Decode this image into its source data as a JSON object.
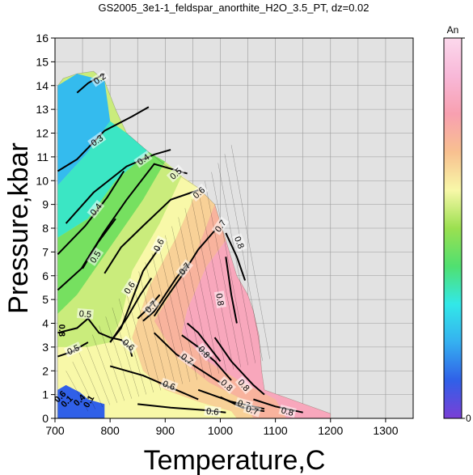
{
  "chart_data": {
    "type": "heatmap",
    "title": "GS2005_3e1-1_feldspar_anorthite_H2O_3.5_PT, dz=0.02",
    "xlabel": "Temperature,C",
    "ylabel": "Pressure,kbar",
    "xlim": [
      700,
      1350
    ],
    "ylim": [
      0,
      16
    ],
    "xticks": [
      "700",
      "800",
      "900",
      "1000",
      "1100",
      "1200",
      "1300"
    ],
    "yticks": [
      "0",
      "1",
      "2",
      "3",
      "4",
      "5",
      "6",
      "7",
      "8",
      "9",
      "10",
      "11",
      "12",
      "13",
      "14",
      "15",
      "16"
    ],
    "grid": true,
    "background_color": "#e2e2e2",
    "colorbar": {
      "label": "An",
      "min_label": "0",
      "min": 0,
      "max": 1,
      "stops": [
        "#7a3fd6",
        "#3060e8",
        "#35b0f0",
        "#32e8e8",
        "#50e070",
        "#9be050",
        "#f8f8a8",
        "#f8c090",
        "#f8a0b0",
        "#f8b8d8",
        "#fcd8ec"
      ]
    },
    "field_boundary": [
      [
        705,
        0
      ],
      [
        705,
        14
      ],
      [
        715,
        14.3
      ],
      [
        740,
        14.5
      ],
      [
        770,
        14.6
      ],
      [
        790,
        14.2
      ],
      [
        810,
        13
      ],
      [
        830,
        12
      ],
      [
        870,
        11.2
      ],
      [
        920,
        10.3
      ],
      [
        960,
        9.7
      ],
      [
        990,
        9
      ],
      [
        1010,
        7.5
      ],
      [
        1030,
        6
      ],
      [
        1050,
        5.2
      ],
      [
        1060,
        4.5
      ],
      [
        1070,
        3.5
      ],
      [
        1075,
        2
      ],
      [
        1080,
        1.2
      ],
      [
        1140,
        0.7
      ],
      [
        1200,
        0.2
      ],
      [
        1200,
        0
      ]
    ],
    "color_fields": [
      {
        "value": 0.22,
        "polygon": [
          [
            705,
            14
          ],
          [
            740,
            14.5
          ],
          [
            790,
            14.2
          ],
          [
            800,
            12.5
          ],
          [
            760,
            11.2
          ],
          [
            705,
            9.8
          ]
        ]
      },
      {
        "value": 0.33,
        "polygon": [
          [
            705,
            9.8
          ],
          [
            760,
            11.2
          ],
          [
            800,
            12.5
          ],
          [
            830,
            12
          ],
          [
            870,
            11.2
          ],
          [
            810,
            10
          ],
          [
            760,
            8.4
          ],
          [
            705,
            7.6
          ]
        ]
      },
      {
        "value": 0.45,
        "polygon": [
          [
            705,
            7.6
          ],
          [
            760,
            8.4
          ],
          [
            810,
            10
          ],
          [
            870,
            11.2
          ],
          [
            900,
            10.8
          ],
          [
            860,
            9.2
          ],
          [
            800,
            7.2
          ],
          [
            740,
            5.2
          ],
          [
            705,
            4.4
          ]
        ]
      },
      {
        "value": 0.55,
        "polygon": [
          [
            705,
            4.4
          ],
          [
            740,
            5.2
          ],
          [
            800,
            7.2
          ],
          [
            860,
            9.2
          ],
          [
            900,
            10.8
          ],
          [
            930,
            10.2
          ],
          [
            890,
            8.2
          ],
          [
            840,
            6.2
          ],
          [
            820,
            4.2
          ],
          [
            800,
            3.2
          ],
          [
            760,
            3
          ],
          [
            705,
            3
          ]
        ]
      },
      {
        "value": 0.6,
        "polygon": [
          [
            705,
            3
          ],
          [
            760,
            3
          ],
          [
            800,
            3.2
          ],
          [
            820,
            4.2
          ],
          [
            840,
            6.2
          ],
          [
            890,
            8.2
          ],
          [
            930,
            10.2
          ],
          [
            960,
            9.7
          ],
          [
            920,
            7.6
          ],
          [
            870,
            5.5
          ],
          [
            840,
            3.4
          ],
          [
            860,
            2
          ],
          [
            900,
            1.2
          ],
          [
            960,
            0.7
          ],
          [
            1020,
            0.3
          ],
          [
            1030,
            0
          ],
          [
            705,
            0
          ]
        ]
      },
      {
        "value": 0.67,
        "polygon": [
          [
            870,
            5.5
          ],
          [
            920,
            7.6
          ],
          [
            960,
            9.7
          ],
          [
            990,
            9
          ],
          [
            960,
            7.2
          ],
          [
            920,
            5.6
          ],
          [
            880,
            4.1
          ],
          [
            920,
            2.6
          ],
          [
            980,
            1.5
          ],
          [
            1040,
            0.8
          ],
          [
            1060,
            0
          ],
          [
            1030,
            0
          ],
          [
            1020,
            0.3
          ],
          [
            960,
            0.7
          ],
          [
            900,
            1.2
          ],
          [
            860,
            2
          ],
          [
            840,
            3.4
          ]
        ]
      },
      {
        "value": 0.74,
        "polygon": [
          [
            880,
            4.1
          ],
          [
            920,
            5.6
          ],
          [
            960,
            7.2
          ],
          [
            990,
            9
          ],
          [
            1010,
            7.5
          ],
          [
            975,
            6.4
          ],
          [
            940,
            4.6
          ],
          [
            930,
            3.6
          ],
          [
            970,
            2.5
          ],
          [
            1040,
            1.5
          ],
          [
            1100,
            0.8
          ],
          [
            1120,
            0
          ],
          [
            1060,
            0
          ],
          [
            1040,
            0.8
          ],
          [
            980,
            1.5
          ],
          [
            920,
            2.6
          ]
        ]
      },
      {
        "value": 0.83,
        "polygon": [
          [
            940,
            4.6
          ],
          [
            975,
            6.4
          ],
          [
            1010,
            7.5
          ],
          [
            1030,
            6
          ],
          [
            1050,
            5.2
          ],
          [
            1060,
            4.5
          ],
          [
            1070,
            3.5
          ],
          [
            1075,
            2
          ],
          [
            1080,
            1.2
          ],
          [
            1140,
            0.7
          ],
          [
            1200,
            0.2
          ],
          [
            1200,
            0
          ],
          [
            1120,
            0
          ],
          [
            1100,
            0.8
          ],
          [
            1040,
            1.5
          ],
          [
            970,
            2.5
          ],
          [
            930,
            3.6
          ]
        ]
      },
      {
        "value": 0.1,
        "polygon": [
          [
            705,
            0
          ],
          [
            705,
            1.2
          ],
          [
            720,
            1.4
          ],
          [
            745,
            1.1
          ],
          [
            760,
            0.8
          ],
          [
            790,
            0.6
          ],
          [
            790,
            0
          ],
          [
            705,
            0
          ]
        ]
      }
    ],
    "contours": [
      {
        "label": "0.2",
        "points": [
          [
            740,
            13.7
          ],
          [
            760,
            14.1
          ],
          [
            790,
            14.5
          ]
        ],
        "label_at": [
          781,
          14.3
        ]
      },
      {
        "label": "0.3",
        "points": [
          [
            705,
            10.4
          ],
          [
            740,
            10.9
          ],
          [
            790,
            12.1
          ],
          [
            840,
            12.7
          ],
          [
            870,
            13.1
          ]
        ],
        "label_at": [
          776,
          11.7
        ]
      },
      {
        "label": "0.4",
        "points": [
          [
            720,
            8.2
          ],
          [
            770,
            9.5
          ],
          [
            830,
            10.6
          ],
          [
            880,
            11.1
          ],
          [
            910,
            11.3
          ]
        ],
        "label_at": [
          860,
          10.9
        ]
      },
      {
        "label": "0.4",
        "points": [
          [
            705,
            6.9
          ],
          [
            755,
            8.1
          ],
          [
            795,
            9.3
          ],
          [
            825,
            10.4
          ]
        ],
        "label_at": [
          774,
          8.8
        ]
      },
      {
        "label": "0.5",
        "points": [
          [
            705,
            5.4
          ],
          [
            748,
            6.3
          ],
          [
            788,
            7.8
          ],
          [
            830,
            9.2
          ],
          [
            880,
            10.7
          ],
          [
            940,
            10.3
          ]
        ],
        "label_at": [
          919,
          10.3
        ]
      },
      {
        "label": "0.5",
        "points": [
          [
            750,
            6.3
          ],
          [
            778,
            7.4
          ],
          [
            810,
            8.4
          ]
        ],
        "label_at": [
          773,
          6.8
        ]
      },
      {
        "label": "0.6",
        "points": [
          [
            790,
            6.1
          ],
          [
            820,
            7.2
          ],
          [
            860,
            8.1
          ],
          [
            910,
            9.2
          ],
          [
            960,
            9.6
          ]
        ],
        "label_at": [
          961,
          9.5
        ]
      },
      {
        "label": "0.5",
        "points": [
          [
            705,
            3.6
          ],
          [
            740,
            3.8
          ],
          [
            760,
            4.2
          ],
          [
            780,
            3.6
          ],
          [
            800,
            3.4
          ]
        ],
        "label_at": [
          755,
          4.4
        ]
      },
      {
        "label": "0.5",
        "points": [
          [
            705,
            2.6
          ],
          [
            730,
            2.8
          ],
          [
            760,
            3.2
          ]
        ],
        "label_at": [
          733,
          2.9
        ]
      },
      {
        "label": "0.6",
        "points": [
          [
            800,
            3.2
          ],
          [
            820,
            3.8
          ],
          [
            840,
            5
          ],
          [
            860,
            6.2
          ],
          [
            890,
            7.2
          ]
        ],
        "label_at": [
          888,
          7.3
        ]
      },
      {
        "label": "0.6",
        "points": [
          [
            800,
            3.2
          ],
          [
            830,
            4.2
          ],
          [
            855,
            5.2
          ],
          [
            875,
            5.9
          ]
        ],
        "label_at": [
          835,
          5.5
        ]
      },
      {
        "label": "0.7",
        "points": [
          [
            880,
            4.3
          ],
          [
            900,
            5
          ],
          [
            930,
            6
          ],
          [
            960,
            7.1
          ],
          [
            990,
            7.9
          ]
        ],
        "label_at": [
          1000,
          8.1
        ]
      },
      {
        "label": "0.7",
        "points": [
          [
            860,
            4.1
          ],
          [
            880,
            4.5
          ],
          [
            900,
            5.2
          ],
          [
            920,
            5.9
          ],
          [
            940,
            6.5
          ]
        ],
        "label_at": [
          935,
          6.3
        ]
      },
      {
        "label": "0.7",
        "points": [
          [
            850,
            4.2
          ],
          [
            868,
            4.6
          ],
          [
            890,
            5.2
          ]
        ],
        "label_at": [
          874,
          4.7
        ]
      },
      {
        "label": "0.6",
        "points": [
          [
            800,
            3.4
          ],
          [
            820,
            3.3
          ],
          [
            835,
            3
          ],
          [
            840,
            2.6
          ]
        ],
        "label_at": [
          834,
          3.1
        ]
      },
      {
        "label": "0.6",
        "points": [
          [
            800,
            2.2
          ],
          [
            860,
            1.8
          ],
          [
            920,
            1.2
          ],
          [
            960,
            0.8
          ]
        ],
        "label_at": [
          907,
          1.4
        ]
      },
      {
        "label": "0.6",
        "points": [
          [
            850,
            0.6
          ],
          [
            910,
            0.45
          ],
          [
            970,
            0.35
          ],
          [
            1010,
            0.25
          ]
        ],
        "label_at": [
          986,
          0.3
        ]
      },
      {
        "label": "0.7",
        "points": [
          [
            880,
            3.6
          ],
          [
            920,
            2.7
          ],
          [
            960,
            2.1
          ],
          [
            1000,
            1.5
          ]
        ],
        "label_at": [
          940,
          2.5
        ]
      },
      {
        "label": "0.7",
        "points": [
          [
            960,
            1.2
          ],
          [
            1020,
            0.7
          ],
          [
            1080,
            0.4
          ]
        ],
        "label_at": [
          1043,
          0.6
        ]
      },
      {
        "label": "0.7",
        "points": [
          [
            1000,
            0.9
          ],
          [
            1040,
            0.45
          ],
          [
            1080,
            0.3
          ]
        ],
        "label_at": [
          1058,
          0.35
        ]
      },
      {
        "label": "0.8",
        "points": [
          [
            930,
            3.5
          ],
          [
            960,
            3
          ],
          [
            990,
            2.4
          ],
          [
            1020,
            1.6
          ]
        ],
        "label_at": [
          1012,
          1.4
        ]
      },
      {
        "label": "0.8",
        "points": [
          [
            940,
            4
          ],
          [
            960,
            3.6
          ],
          [
            980,
            3
          ],
          [
            1000,
            2.4
          ]
        ],
        "label_at": [
          971,
          2.8
        ]
      },
      {
        "label": "0.8",
        "points": [
          [
            990,
            3.4
          ],
          [
            1020,
            2.4
          ],
          [
            1060,
            1.4
          ],
          [
            1080,
            1
          ]
        ],
        "label_at": [
          1043,
          1.4
        ]
      },
      {
        "label": "0.8",
        "points": [
          [
            1060,
            0.8
          ],
          [
            1100,
            0.5
          ],
          [
            1150,
            0.25
          ]
        ],
        "label_at": [
          1122,
          0.3
        ]
      },
      {
        "label": "0.8",
        "points": [
          [
            1010,
            6.8
          ],
          [
            1020,
            5.2
          ],
          [
            1030,
            4
          ]
        ],
        "label_at": [
          1000,
          5
        ]
      },
      {
        "label": "0.8",
        "points": [
          [
            1010,
            7.8
          ],
          [
            1030,
            6.8
          ],
          [
            1045,
            5.8
          ]
        ],
        "label_at": [
          1035,
          7.4
        ]
      }
    ],
    "small_labels": [
      {
        "label": "0.8",
        "at": [
          712,
          3.7
        ],
        "rotate": 90
      },
      {
        "label": "0.6",
        "at": [
          710,
          0.9
        ],
        "rotate": -45
      },
      {
        "label": "0.1",
        "at": [
          722,
          0.7
        ],
        "rotate": -45
      },
      {
        "label": "0.4",
        "at": [
          745,
          0.75
        ],
        "rotate": -45
      },
      {
        "label": "0.1",
        "at": [
          762,
          0.7
        ],
        "rotate": -60
      }
    ]
  }
}
